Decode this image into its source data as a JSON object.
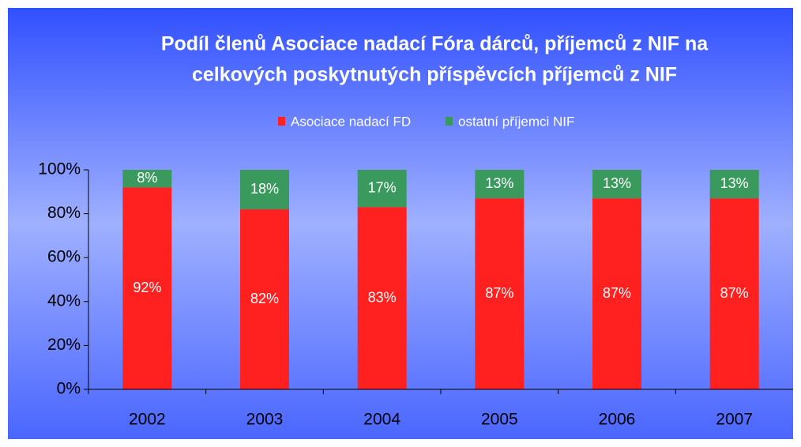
{
  "chart_data": {
    "type": "stacked_bar",
    "title": [
      "Podíl členů Asociace nadací Fóra dárců, příjemců z NIF na",
      "celkových poskytnutých příspěvcích příjemců z NIF"
    ],
    "categories": [
      "2002",
      "2003",
      "2004",
      "2005",
      "2006",
      "2007"
    ],
    "series": [
      {
        "name": "Asociace nadací FD",
        "color": "#ff2020",
        "values": [
          92,
          82,
          83,
          87,
          87,
          87
        ],
        "value_labels": [
          "92%",
          "82%",
          "83%",
          "87%",
          "87%",
          "87%"
        ]
      },
      {
        "name": "ostatní příjemci NIF",
        "color": "#3a9a5e",
        "values": [
          8,
          18,
          17,
          13,
          13,
          13
        ],
        "value_labels": [
          "8%",
          "18%",
          "17%",
          "13%",
          "13%",
          "13%"
        ]
      }
    ],
    "ylim": [
      0,
      100
    ],
    "yticks": [
      {
        "value": 0,
        "label": "0%"
      },
      {
        "value": 20,
        "label": "20%"
      },
      {
        "value": 40,
        "label": "40%"
      },
      {
        "value": 60,
        "label": "60%"
      },
      {
        "value": 80,
        "label": "80%"
      },
      {
        "value": 100,
        "label": "100%"
      }
    ],
    "legend": "top"
  }
}
